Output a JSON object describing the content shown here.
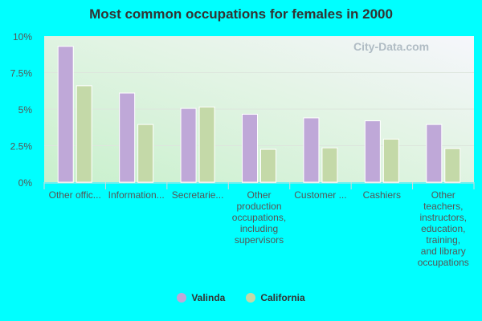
{
  "chart_data": {
    "type": "bar",
    "title": "Most common occupations for females in 2000",
    "categories": [
      "Other offic...",
      "Information...",
      "Secretarie...",
      "Other production occupations, including supervisors",
      "Customer ...",
      "Cashiers",
      "Other teachers, instructors, education, training, and library occupations"
    ],
    "category_lines": [
      [
        "Other offic..."
      ],
      [
        "Information..."
      ],
      [
        "Secretarie..."
      ],
      [
        "Other",
        "production",
        "occupations,",
        "including",
        "supervisors"
      ],
      [
        "Customer ..."
      ],
      [
        "Cashiers"
      ],
      [
        "Other",
        "teachers,",
        "instructors,",
        "education,",
        "training,",
        "and library",
        "occupations"
      ]
    ],
    "series": [
      {
        "name": "Valinda",
        "color": "#bfa8d8",
        "values": [
          9.3,
          6.1,
          5.05,
          4.65,
          4.4,
          4.2,
          3.95
        ]
      },
      {
        "name": "California",
        "color": "#c4d9a8",
        "values": [
          6.6,
          3.95,
          5.15,
          2.25,
          2.35,
          2.95,
          2.3
        ]
      }
    ],
    "ylim": [
      0,
      10
    ],
    "yticks": [
      "0%",
      "2.5%",
      "5%",
      "7.5%",
      "10%"
    ],
    "ytick_values": [
      0,
      2.5,
      5,
      7.5,
      10
    ],
    "grid": true,
    "legend_position": "bottom"
  },
  "watermark": "City-Data.com"
}
